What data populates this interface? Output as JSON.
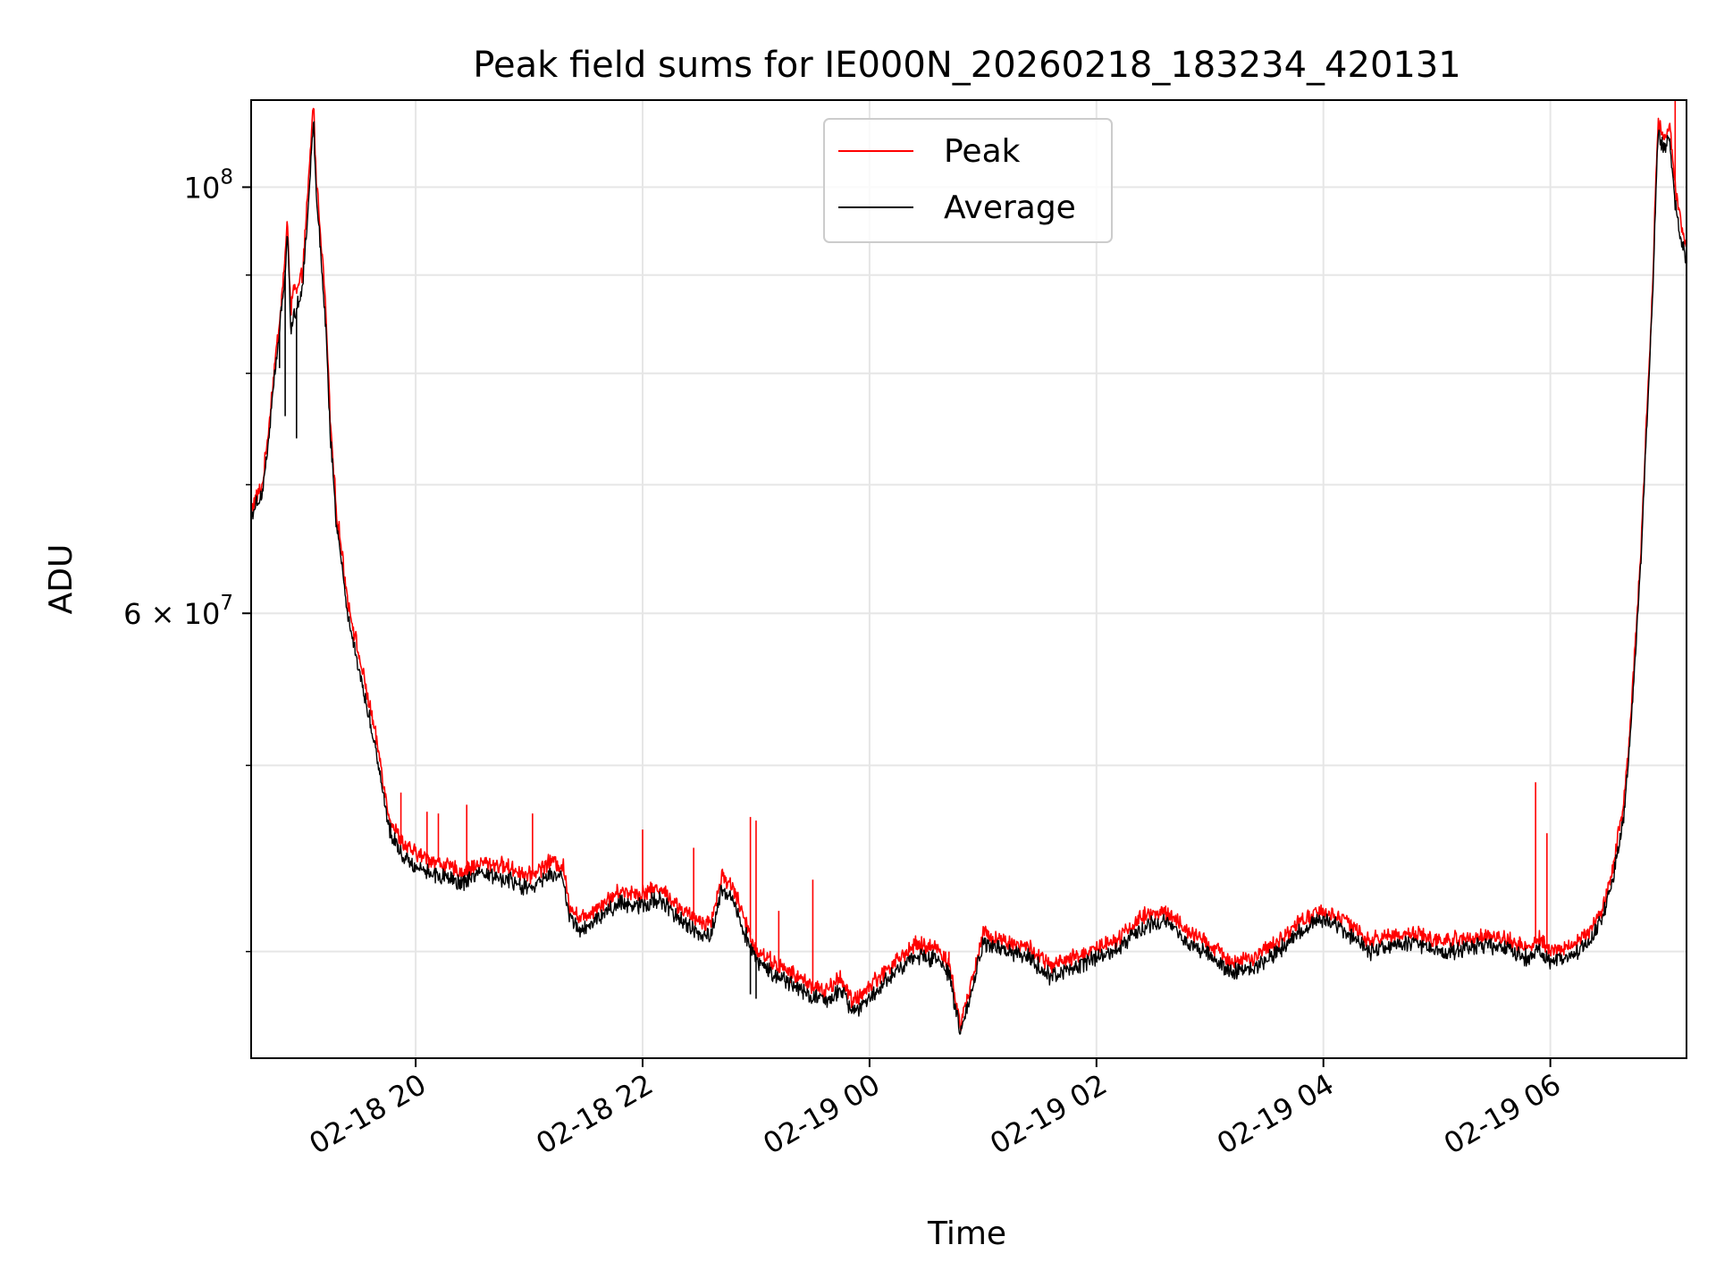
{
  "chart_data": {
    "type": "line",
    "title": "Peak field sums for IE000N_20260218_183234_420131",
    "xlabel": "Time",
    "ylabel": "ADU",
    "yscale": "log",
    "ylim": [
      35200000,
      111000000
    ],
    "xlim_hours": [
      18.55,
      7.2
    ],
    "grid": true,
    "legend": {
      "location": "upper center",
      "entries": [
        "Peak",
        "Average"
      ]
    },
    "x_ticks": [
      {
        "hour": 20,
        "label": "02-18 20"
      },
      {
        "hour": 22,
        "label": "02-18 22"
      },
      {
        "hour": 24,
        "label": "02-19 00"
      },
      {
        "hour": 26,
        "label": "02-19 02"
      },
      {
        "hour": 28,
        "label": "02-19 04"
      },
      {
        "hour": 30,
        "label": "02-19 06"
      }
    ],
    "y_ticks": [
      {
        "value": 100000000,
        "base": "10",
        "exp": "8"
      },
      {
        "value": 60000000,
        "mant": "6",
        "times": "×",
        "base": "10",
        "exp": "7"
      }
    ],
    "y_minor_ticks": [
      40000000,
      50000000,
      70000000,
      80000000,
      90000000
    ],
    "colors": {
      "peak": "#ff0000",
      "average": "#000000",
      "grid": "#e6e6e6"
    },
    "series": [
      {
        "name": "Peak",
        "color": "#ff0000",
        "points": [
          [
            18.55,
            68.0
          ],
          [
            18.65,
            70.0
          ],
          [
            18.7,
            74.5
          ],
          [
            18.75,
            80.0
          ],
          [
            18.8,
            85.0
          ],
          [
            18.85,
            92.0
          ],
          [
            18.87,
            96.0
          ],
          [
            18.9,
            86.0
          ],
          [
            18.93,
            89.0
          ],
          [
            18.95,
            88.0
          ],
          [
            19.0,
            90.0
          ],
          [
            19.05,
            99.0
          ],
          [
            19.1,
            111.0
          ],
          [
            19.12,
            102.0
          ],
          [
            19.2,
            88.0
          ],
          [
            19.25,
            75.0
          ],
          [
            19.3,
            68.0
          ],
          [
            19.4,
            61.0
          ],
          [
            19.5,
            57.0
          ],
          [
            19.6,
            53.5
          ],
          [
            19.7,
            49.8
          ],
          [
            19.75,
            47.5
          ],
          [
            19.8,
            46.5
          ],
          [
            19.9,
            45.4
          ],
          [
            20.0,
            45.0
          ],
          [
            20.2,
            44.5
          ],
          [
            20.4,
            44.0
          ],
          [
            20.6,
            44.5
          ],
          [
            20.8,
            44.3
          ],
          [
            21.0,
            43.8
          ],
          [
            21.2,
            44.6
          ],
          [
            21.3,
            44.3
          ],
          [
            21.35,
            42.4
          ],
          [
            21.45,
            41.6
          ],
          [
            21.6,
            42.2
          ],
          [
            21.8,
            43.0
          ],
          [
            22.0,
            42.9
          ],
          [
            22.15,
            43.2
          ],
          [
            22.3,
            42.3
          ],
          [
            22.45,
            41.6
          ],
          [
            22.6,
            41.4
          ],
          [
            22.7,
            43.8
          ],
          [
            22.8,
            43.2
          ],
          [
            22.9,
            41.5
          ],
          [
            23.0,
            40.1
          ],
          [
            23.2,
            39.3
          ],
          [
            23.4,
            38.7
          ],
          [
            23.6,
            38.1
          ],
          [
            23.75,
            38.8
          ],
          [
            23.85,
            37.6
          ],
          [
            24.0,
            38.4
          ],
          [
            24.2,
            39.4
          ],
          [
            24.4,
            40.3
          ],
          [
            24.6,
            40.2
          ],
          [
            24.7,
            39.4
          ],
          [
            24.8,
            36.6
          ],
          [
            24.9,
            38.6
          ],
          [
            25.0,
            40.9
          ],
          [
            25.2,
            40.5
          ],
          [
            25.4,
            40.2
          ],
          [
            25.6,
            39.3
          ],
          [
            25.8,
            39.7
          ],
          [
            26.0,
            40.2
          ],
          [
            26.2,
            40.7
          ],
          [
            26.4,
            41.7
          ],
          [
            26.6,
            42.0
          ],
          [
            26.8,
            41.0
          ],
          [
            27.0,
            40.3
          ],
          [
            27.2,
            39.5
          ],
          [
            27.4,
            39.7
          ],
          [
            27.6,
            40.5
          ],
          [
            27.8,
            41.5
          ],
          [
            28.0,
            42.0
          ],
          [
            28.2,
            41.5
          ],
          [
            28.4,
            40.5
          ],
          [
            28.6,
            40.8
          ],
          [
            28.8,
            40.9
          ],
          [
            29.0,
            40.5
          ],
          [
            29.2,
            40.6
          ],
          [
            29.4,
            40.8
          ],
          [
            29.6,
            40.6
          ],
          [
            29.8,
            40.2
          ],
          [
            29.9,
            40.6
          ],
          [
            30.0,
            40.0
          ],
          [
            30.2,
            40.3
          ],
          [
            30.35,
            41.0
          ],
          [
            30.45,
            42.0
          ],
          [
            30.55,
            44.0
          ],
          [
            30.65,
            48.0
          ],
          [
            30.7,
            52.0
          ],
          [
            30.75,
            58.0
          ],
          [
            30.8,
            65.0
          ],
          [
            30.85,
            76.0
          ],
          [
            30.9,
            88.0
          ],
          [
            30.93,
            101.0
          ],
          [
            30.95,
            108.0
          ],
          [
            31.0,
            106.0
          ],
          [
            31.05,
            108.0
          ],
          [
            31.1,
            100.0
          ],
          [
            31.15,
            96.0
          ],
          [
            31.2,
            93.0
          ]
        ],
        "spikes": [
          [
            19.87,
            48.4
          ],
          [
            20.1,
            47.3
          ],
          [
            20.2,
            47.2
          ],
          [
            20.45,
            47.7
          ],
          [
            21.03,
            47.2
          ],
          [
            22.0,
            46.3
          ],
          [
            22.45,
            45.3
          ],
          [
            22.95,
            47.0
          ],
          [
            23.0,
            46.8
          ],
          [
            23.2,
            42.0
          ],
          [
            23.5,
            43.6
          ],
          [
            24.7,
            40.0
          ],
          [
            29.87,
            49.0
          ],
          [
            29.97,
            46.1
          ],
          [
            31.1,
            111.0
          ]
        ]
      },
      {
        "name": "Average",
        "color": "#000000",
        "points": [
          [
            18.55,
            67.5
          ],
          [
            18.65,
            69.5
          ],
          [
            18.7,
            73.5
          ],
          [
            18.75,
            79.0
          ],
          [
            18.8,
            84.0
          ],
          [
            18.85,
            90.5
          ],
          [
            18.87,
            95.0
          ],
          [
            18.9,
            84.0
          ],
          [
            18.93,
            86.0
          ],
          [
            18.95,
            86.5
          ],
          [
            19.0,
            88.5
          ],
          [
            19.05,
            97.0
          ],
          [
            19.1,
            109.0
          ],
          [
            19.12,
            100.0
          ],
          [
            19.2,
            86.0
          ],
          [
            19.25,
            74.0
          ],
          [
            19.3,
            67.0
          ],
          [
            19.4,
            60.0
          ],
          [
            19.5,
            56.0
          ],
          [
            19.6,
            52.7
          ],
          [
            19.7,
            49.0
          ],
          [
            19.75,
            46.8
          ],
          [
            19.8,
            45.8
          ],
          [
            19.9,
            44.8
          ],
          [
            20.0,
            44.3
          ],
          [
            20.2,
            43.8
          ],
          [
            20.4,
            43.4
          ],
          [
            20.6,
            43.9
          ],
          [
            20.8,
            43.6
          ],
          [
            21.0,
            43.1
          ],
          [
            21.2,
            43.9
          ],
          [
            21.3,
            43.6
          ],
          [
            21.35,
            41.8
          ],
          [
            21.45,
            41.0
          ],
          [
            21.6,
            41.6
          ],
          [
            21.8,
            42.4
          ],
          [
            22.0,
            42.3
          ],
          [
            22.15,
            42.6
          ],
          [
            22.3,
            41.7
          ],
          [
            22.45,
            41.0
          ],
          [
            22.6,
            40.8
          ],
          [
            22.7,
            43.1
          ],
          [
            22.8,
            42.6
          ],
          [
            22.9,
            40.9
          ],
          [
            23.0,
            39.6
          ],
          [
            23.2,
            38.8
          ],
          [
            23.4,
            38.2
          ],
          [
            23.6,
            37.6
          ],
          [
            23.75,
            38.3
          ],
          [
            23.85,
            37.1
          ],
          [
            24.0,
            37.9
          ],
          [
            24.2,
            38.9
          ],
          [
            24.4,
            39.8
          ],
          [
            24.6,
            39.7
          ],
          [
            24.7,
            38.9
          ],
          [
            24.8,
            36.2
          ],
          [
            24.9,
            38.1
          ],
          [
            25.0,
            40.4
          ],
          [
            25.2,
            40.0
          ],
          [
            25.4,
            39.7
          ],
          [
            25.6,
            38.8
          ],
          [
            25.8,
            39.2
          ],
          [
            26.0,
            39.7
          ],
          [
            26.2,
            40.2
          ],
          [
            26.4,
            41.2
          ],
          [
            26.6,
            41.5
          ],
          [
            26.8,
            40.5
          ],
          [
            27.0,
            39.8
          ],
          [
            27.2,
            39.0
          ],
          [
            27.4,
            39.2
          ],
          [
            27.6,
            40.0
          ],
          [
            27.8,
            41.0
          ],
          [
            28.0,
            41.6
          ],
          [
            28.2,
            41.0
          ],
          [
            28.4,
            40.0
          ],
          [
            28.6,
            40.3
          ],
          [
            28.8,
            40.4
          ],
          [
            29.0,
            40.0
          ],
          [
            29.2,
            40.1
          ],
          [
            29.4,
            40.3
          ],
          [
            29.6,
            40.1
          ],
          [
            29.8,
            39.7
          ],
          [
            29.9,
            40.1
          ],
          [
            30.0,
            39.5
          ],
          [
            30.2,
            39.8
          ],
          [
            30.35,
            40.5
          ],
          [
            30.45,
            41.5
          ],
          [
            30.55,
            43.4
          ],
          [
            30.65,
            47.3
          ],
          [
            30.7,
            51.2
          ],
          [
            30.75,
            57.2
          ],
          [
            30.8,
            64.0
          ],
          [
            30.85,
            75.0
          ],
          [
            30.9,
            87.0
          ],
          [
            30.93,
            99.5
          ],
          [
            30.95,
            106.5
          ],
          [
            31.0,
            104.5
          ],
          [
            31.05,
            106.0
          ],
          [
            31.1,
            98.0
          ],
          [
            31.15,
            94.0
          ],
          [
            31.2,
            91.5
          ]
        ],
        "spikes": [
          [
            18.8,
            80.5
          ],
          [
            18.85,
            76.0
          ],
          [
            18.95,
            74.0
          ],
          [
            22.95,
            38.0
          ],
          [
            23.0,
            37.8
          ]
        ]
      }
    ]
  }
}
